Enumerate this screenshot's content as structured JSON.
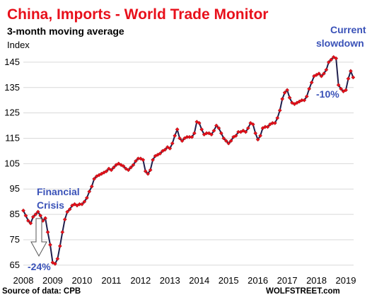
{
  "chart_data": {
    "type": "line",
    "title": "China, Imports - World Trade Monitor",
    "subtitle": "3-month moving average",
    "ylabel": "Index",
    "xlabel": "",
    "ylim": [
      63,
      150
    ],
    "xlim": [
      2008,
      2019.6
    ],
    "yticks": [
      65,
      75,
      85,
      95,
      105,
      115,
      125,
      135,
      145
    ],
    "xticks": [
      2008,
      2009,
      2010,
      2011,
      2012,
      2013,
      2014,
      2015,
      2016,
      2017,
      2018,
      2019
    ],
    "grid": true,
    "colors": {
      "line": "#1f1f4d",
      "marker": "#e8101b",
      "title": "#e8101b",
      "annotation": "#3a52b8"
    },
    "series": [
      {
        "x_start": 2008.0,
        "x_step": 0.0833333,
        "values": [
          86.5,
          84.5,
          82.5,
          81.5,
          84,
          85,
          86,
          84.5,
          82.5,
          83.5,
          78,
          73,
          66,
          65.5,
          67.5,
          72.5,
          78,
          83,
          86,
          87,
          88.5,
          89,
          88.5,
          89,
          89,
          90,
          91.5,
          94,
          96,
          99,
          100,
          100.5,
          101,
          101.5,
          102,
          103,
          102.5,
          103.5,
          104.5,
          105,
          104.5,
          104,
          103,
          102.5,
          103.5,
          104.5,
          106,
          107,
          107,
          106.5,
          102,
          101,
          102.5,
          106.5,
          108,
          108.5,
          109,
          110,
          110.5,
          111.5,
          111,
          113,
          116,
          118.5,
          115,
          114,
          115,
          115.5,
          115.5,
          115.5,
          117,
          121.5,
          121,
          118.5,
          116.5,
          117,
          117,
          116.5,
          118,
          120,
          119,
          117,
          115,
          114,
          113,
          114,
          115.5,
          116,
          117.5,
          117.5,
          118,
          117.5,
          119,
          121,
          120.5,
          117,
          114.5,
          116,
          119,
          119.5,
          119.5,
          120.5,
          121,
          121,
          123,
          126,
          130.5,
          133,
          134,
          131,
          129,
          128.5,
          129,
          129.5,
          130,
          130,
          131.5,
          134.5,
          137,
          139.5,
          140,
          140.5,
          139.5,
          140.5,
          142,
          145,
          146,
          147,
          146.5,
          136,
          134.5,
          133.5,
          134,
          138.5,
          141.5,
          139
        ]
      }
    ],
    "annotations": {
      "financial_crisis": "Financial Crisis",
      "crisis_drop": "-24%",
      "current": "Current slowdown",
      "current_drop": "-10%"
    }
  },
  "footer": {
    "source": "Source of data: CPB",
    "brand": "WOLFSTREET.com"
  }
}
